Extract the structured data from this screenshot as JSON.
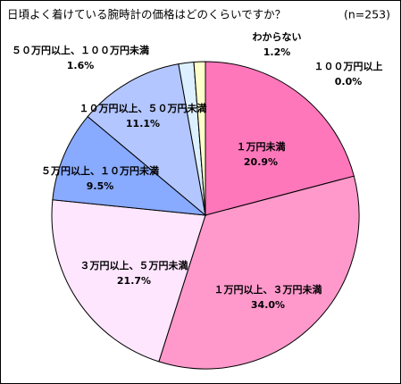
{
  "chart_data": {
    "type": "pie",
    "title": "日頃よく着けている腕時計の価格はどのくらいですか？",
    "subtitle": "(n=253)",
    "categories": [
      "１万円未満",
      "１万円以上、３万円未満",
      "３万円以上、５万円未満",
      "５万円以上、１０万円未満",
      "１０万円以上、５０万円未満",
      "５０万円以上、１００万円未満",
      "１００万円以上",
      "わからない"
    ],
    "values": [
      20.9,
      34.0,
      21.7,
      9.5,
      11.1,
      1.6,
      0.0,
      1.2
    ],
    "value_labels": [
      "20.9%",
      "34.0%",
      "21.7%",
      "9.5%",
      "11.1%",
      "1.6%",
      "0.0%",
      "1.2%"
    ],
    "colors": [
      "#ff77bb",
      "#ff99cc",
      "#ffe6ff",
      "#88aaff",
      "#b3c6ff",
      "#ddf0ff",
      "#ffffff",
      "#ffffcc"
    ]
  }
}
